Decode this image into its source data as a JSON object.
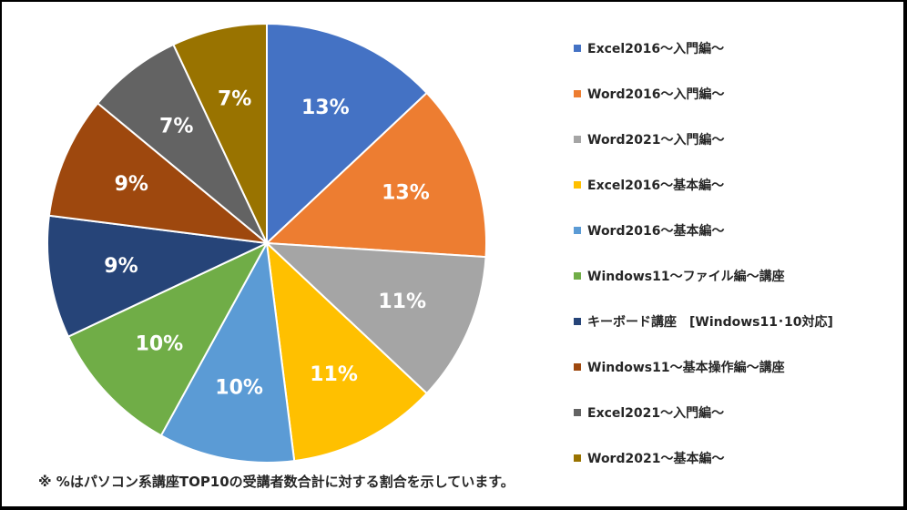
{
  "chart_data": {
    "type": "pie",
    "categories": [
      "Excel2016～入門編～",
      "Word2016～入門編～",
      "Word2021～入門編～",
      "Excel2016～基本編～",
      "Word2016～基本編～",
      "Windows11～ファイル編～講座",
      "キーボード講座　[Windows11･10対応]",
      "Windows11～基本操作編～講座",
      "Excel2021～入門編～",
      "Word2021～基本編～"
    ],
    "values": [
      13,
      13,
      11,
      11,
      10,
      10,
      9,
      9,
      7,
      7
    ],
    "data_labels": [
      "13%",
      "13%",
      "11%",
      "11%",
      "10%",
      "10%",
      "9%",
      "9%",
      "7%",
      "7%"
    ],
    "colors": [
      "#4472C4",
      "#ED7D31",
      "#A5A5A5",
      "#FFC000",
      "#5B9BD5",
      "#70AD47",
      "#264478",
      "#9E480E",
      "#636363",
      "#997300"
    ],
    "start_angle_deg": 0,
    "direction": "clockwise",
    "legend_position": "right",
    "title": "",
    "footnote": "※ %はパソコン系講座TOP10の受講者数合計に対する割合を示しています。"
  }
}
